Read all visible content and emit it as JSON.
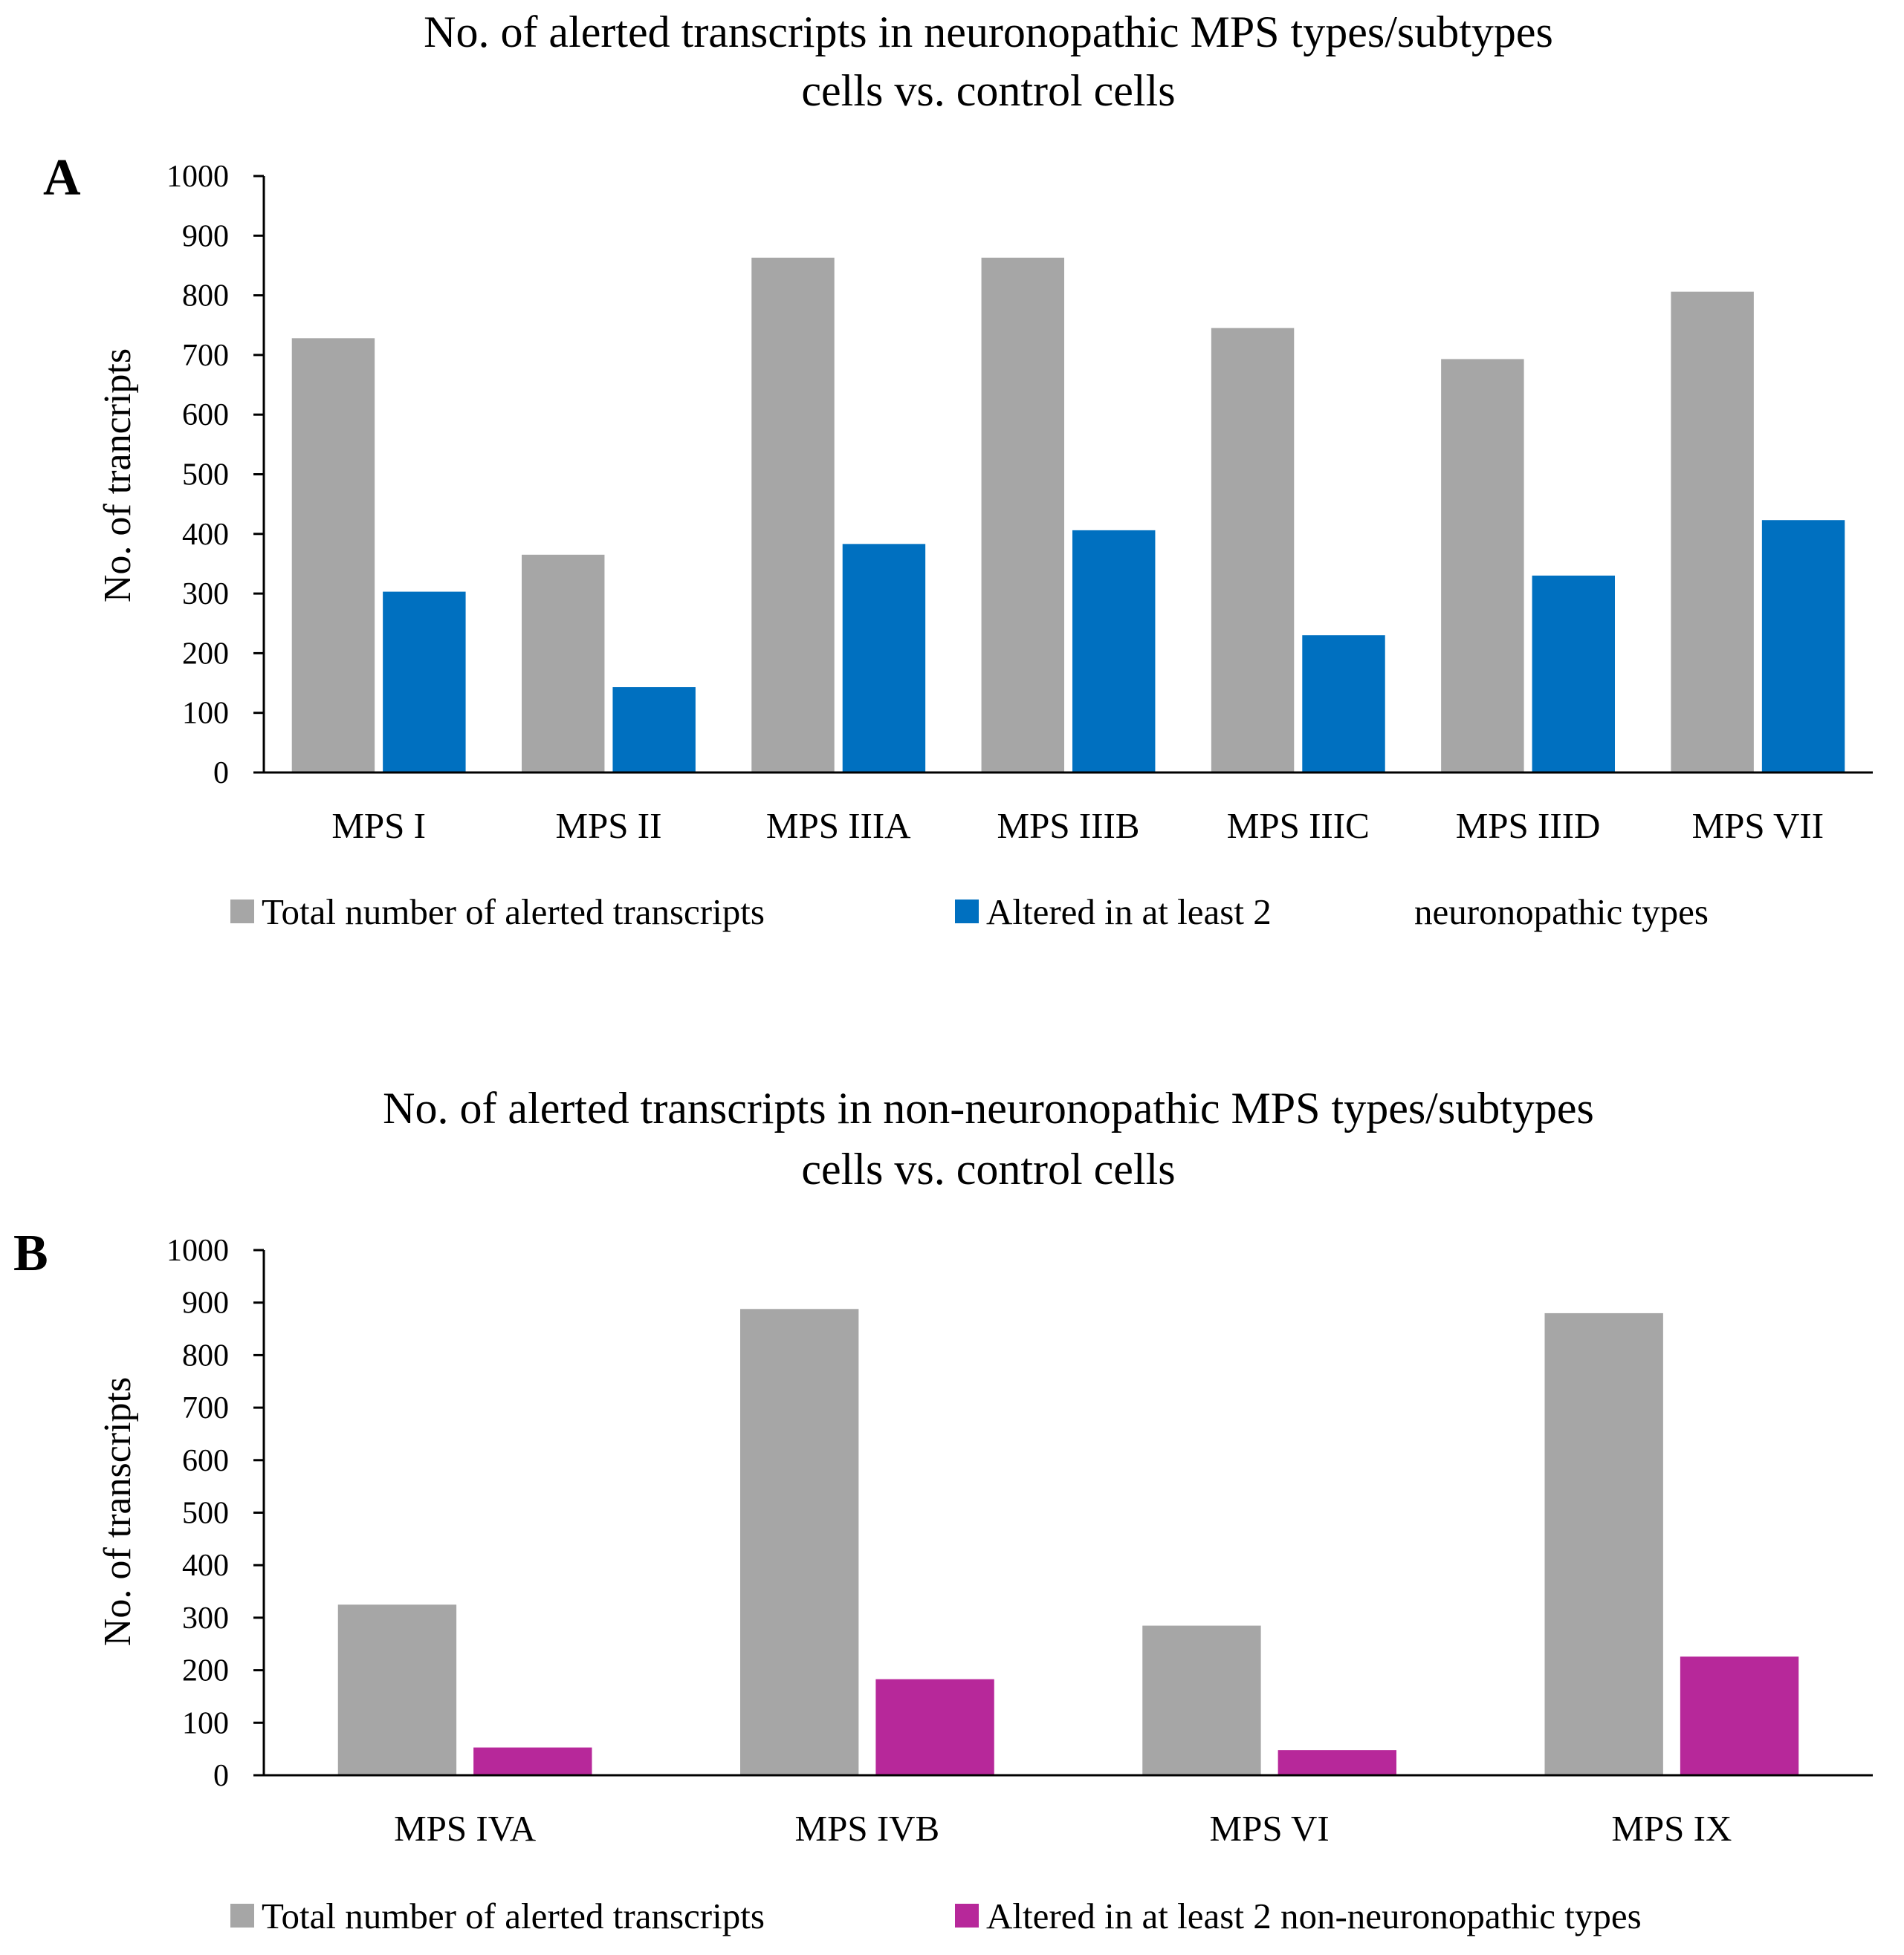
{
  "chart_data": [
    {
      "type": "bar",
      "panel": "A",
      "title_lines": [
        "No. of alerted transcripts in neuronopathic MPS types/subtypes",
        "cells vs. control cells"
      ],
      "xlabel": "",
      "ylabel": "No. of trancripts",
      "ylim": [
        0,
        1000
      ],
      "yticks": [
        0,
        100,
        200,
        300,
        400,
        500,
        600,
        700,
        800,
        900,
        1000
      ],
      "categories": [
        "MPS I",
        "MPS II",
        "MPS IIIA",
        "MPS IIIB",
        "MPS IIIC",
        "MPS IIID",
        "MPS VII"
      ],
      "series": [
        {
          "name": "Total number of alerted transcripts",
          "color": "#A6A6A6",
          "values": [
            730,
            367,
            865,
            865,
            747,
            695,
            808
          ]
        },
        {
          "name": "Altered in at least 2",
          "color": "#0070C0",
          "values": [
            305,
            145,
            385,
            408,
            232,
            332,
            425
          ]
        }
      ],
      "legend_extra": "neuronopathic types",
      "legend_position": "bottom"
    },
    {
      "type": "bar",
      "panel": "B",
      "title_lines": [
        "No. of alerted transcripts in non-neuronopathic MPS types/subtypes",
        "cells vs. control cells"
      ],
      "xlabel": "",
      "ylabel": "No. of transcripts",
      "ylim": [
        0,
        1000
      ],
      "yticks": [
        0,
        100,
        200,
        300,
        400,
        500,
        600,
        700,
        800,
        900,
        1000
      ],
      "categories": [
        "MPS IVA",
        "MPS IVB",
        "MPS VI",
        "MPS IX"
      ],
      "series": [
        {
          "name": "Total number of alerted transcripts",
          "color": "#A6A6A6",
          "values": [
            327,
            890,
            287,
            882
          ]
        },
        {
          "name": "Altered in at least 2 non-neuronopathic types",
          "color": "#B7289A",
          "values": [
            55,
            185,
            50,
            228
          ]
        }
      ],
      "legend_extra": "",
      "legend_position": "bottom"
    }
  ]
}
